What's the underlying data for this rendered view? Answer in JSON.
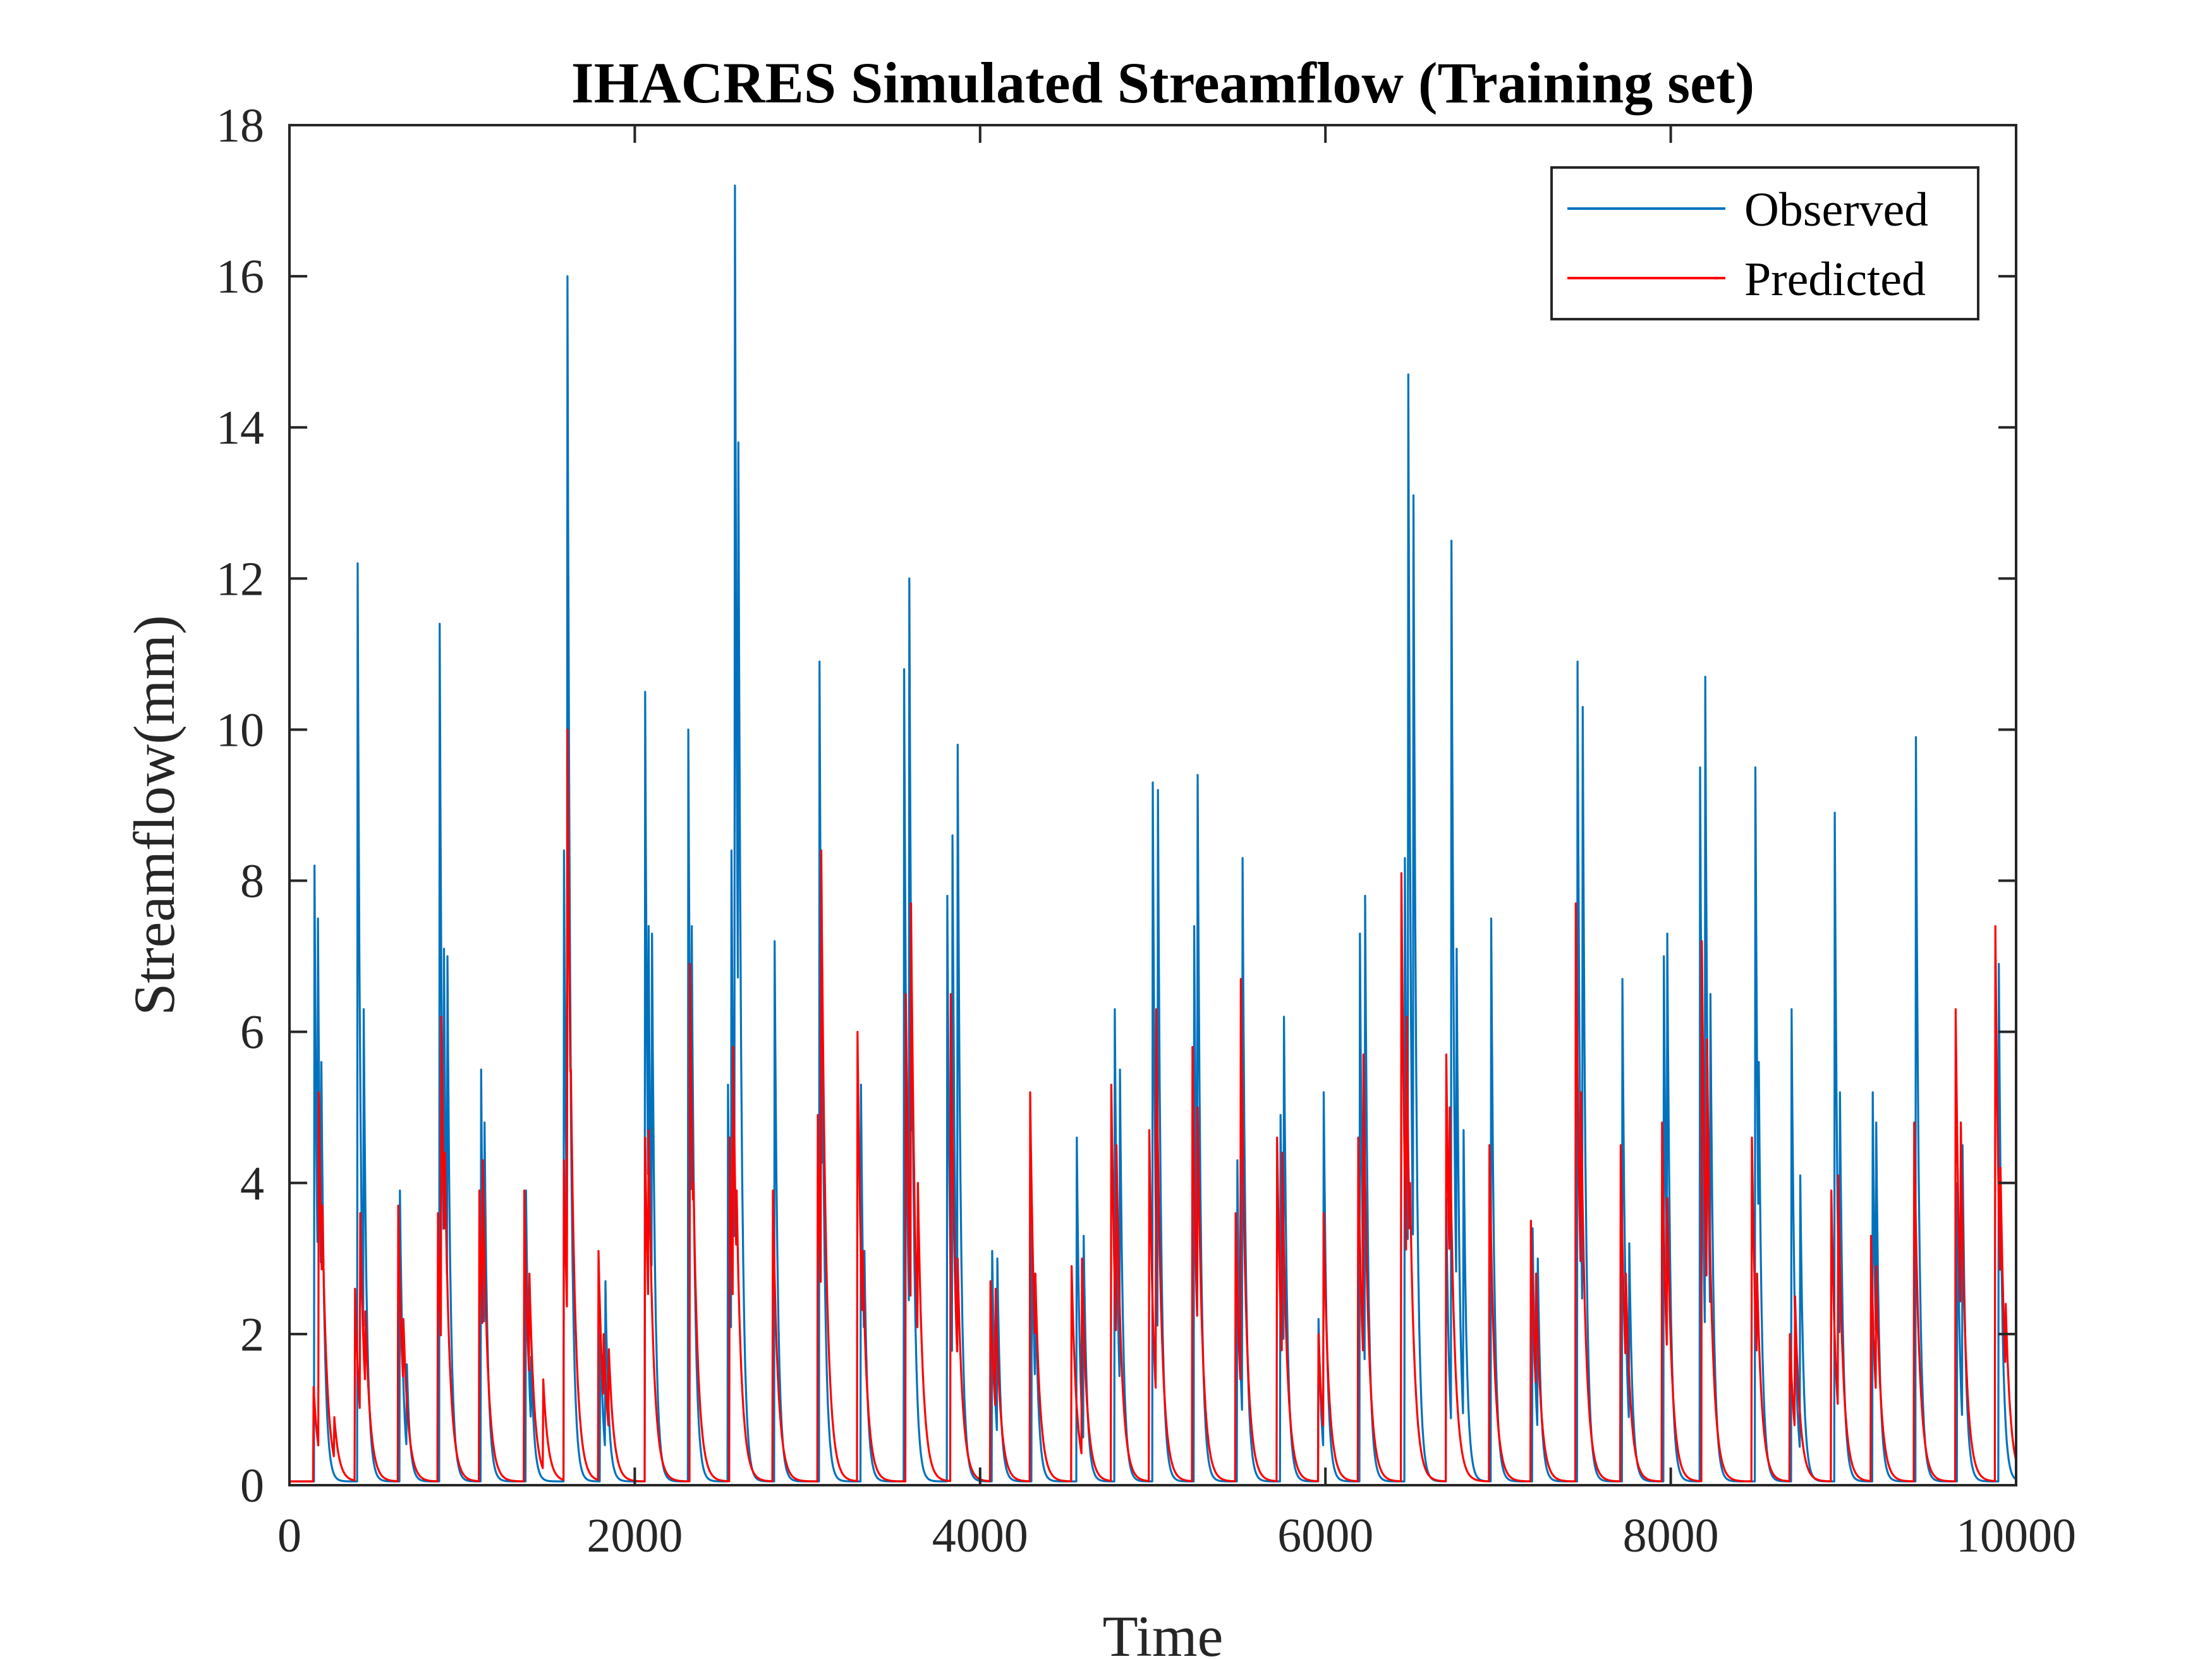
{
  "chart_data": {
    "type": "line",
    "title": "IHACRES Simulated Streamflow (Training set)",
    "xlabel": "Time",
    "ylabel": "Streamflow(mm)",
    "xlim": [
      0,
      10000
    ],
    "ylim": [
      0,
      18
    ],
    "xticks": [
      "0",
      "2000",
      "4000",
      "6000",
      "8000",
      "10000"
    ],
    "yticks": [
      "0",
      "2",
      "4",
      "6",
      "8",
      "10",
      "12",
      "14",
      "16",
      "18"
    ],
    "grid": false,
    "legend_position": "top-right",
    "baseline": 0.05,
    "series": [
      {
        "name": "Observed",
        "color": "#0072BD",
        "peaks": [
          [
            145,
            8.2
          ],
          [
            165,
            7.5
          ],
          [
            185,
            5.6
          ],
          [
            395,
            12.2
          ],
          [
            430,
            6.3
          ],
          [
            640,
            3.9
          ],
          [
            680,
            1.6
          ],
          [
            870,
            11.4
          ],
          [
            895,
            7.1
          ],
          [
            915,
            7.0
          ],
          [
            1110,
            5.5
          ],
          [
            1130,
            4.8
          ],
          [
            1370,
            3.9
          ],
          [
            1400,
            1.7
          ],
          [
            1590,
            8.4
          ],
          [
            1610,
            16.0
          ],
          [
            1630,
            5.0
          ],
          [
            1800,
            2.2
          ],
          [
            1830,
            2.7
          ],
          [
            2060,
            10.5
          ],
          [
            2080,
            7.4
          ],
          [
            2100,
            7.3
          ],
          [
            2310,
            10.0
          ],
          [
            2330,
            7.4
          ],
          [
            2540,
            5.3
          ],
          [
            2560,
            8.4
          ],
          [
            2580,
            17.2
          ],
          [
            2600,
            13.8
          ],
          [
            2810,
            7.2
          ],
          [
            3070,
            10.9
          ],
          [
            3090,
            5.0
          ],
          [
            3310,
            5.3
          ],
          [
            3330,
            3.1
          ],
          [
            3560,
            10.8
          ],
          [
            3590,
            12.0
          ],
          [
            3610,
            5.0
          ],
          [
            3810,
            7.8
          ],
          [
            3840,
            8.6
          ],
          [
            3870,
            9.8
          ],
          [
            4070,
            3.1
          ],
          [
            4100,
            3.0
          ],
          [
            4300,
            3.7
          ],
          [
            4320,
            2.8
          ],
          [
            4560,
            4.6
          ],
          [
            4600,
            3.3
          ],
          [
            4780,
            6.3
          ],
          [
            4810,
            5.5
          ],
          [
            5000,
            9.3
          ],
          [
            5030,
            9.2
          ],
          [
            5240,
            7.4
          ],
          [
            5260,
            9.4
          ],
          [
            5490,
            4.3
          ],
          [
            5520,
            8.3
          ],
          [
            5740,
            4.9
          ],
          [
            5760,
            6.2
          ],
          [
            5960,
            2.2
          ],
          [
            5990,
            5.2
          ],
          [
            6200,
            7.3
          ],
          [
            6230,
            7.8
          ],
          [
            6460,
            8.3
          ],
          [
            6480,
            14.7
          ],
          [
            6510,
            13.1
          ],
          [
            6700,
            3.8
          ],
          [
            6730,
            12.5
          ],
          [
            6760,
            7.1
          ],
          [
            6800,
            4.7
          ],
          [
            6960,
            7.5
          ],
          [
            7200,
            3.4
          ],
          [
            7230,
            3.0
          ],
          [
            7460,
            10.9
          ],
          [
            7490,
            10.3
          ],
          [
            7720,
            6.7
          ],
          [
            7760,
            3.2
          ],
          [
            7960,
            7.0
          ],
          [
            7980,
            7.3
          ],
          [
            8170,
            9.5
          ],
          [
            8200,
            10.7
          ],
          [
            8230,
            6.5
          ],
          [
            8490,
            9.5
          ],
          [
            8510,
            5.6
          ],
          [
            8700,
            6.3
          ],
          [
            8750,
            4.1
          ],
          [
            8950,
            8.9
          ],
          [
            8980,
            5.2
          ],
          [
            9170,
            5.2
          ],
          [
            9190,
            4.8
          ],
          [
            9420,
            9.9
          ],
          [
            9660,
            4.0
          ],
          [
            9690,
            4.5
          ],
          [
            9900,
            6.9
          ]
        ]
      },
      {
        "name": "Predicted",
        "color": "#FF0000",
        "peaks": [
          [
            140,
            1.3
          ],
          [
            170,
            5.2
          ],
          [
            190,
            3.7
          ],
          [
            260,
            0.9
          ],
          [
            380,
            2.6
          ],
          [
            410,
            3.6
          ],
          [
            440,
            2.3
          ],
          [
            630,
            3.7
          ],
          [
            660,
            2.2
          ],
          [
            860,
            3.6
          ],
          [
            880,
            6.2
          ],
          [
            900,
            4.4
          ],
          [
            1100,
            3.9
          ],
          [
            1120,
            4.3
          ],
          [
            1360,
            3.9
          ],
          [
            1390,
            2.8
          ],
          [
            1470,
            1.4
          ],
          [
            1590,
            4.3
          ],
          [
            1610,
            10.0
          ],
          [
            1630,
            5.5
          ],
          [
            1790,
            3.1
          ],
          [
            1820,
            2.0
          ],
          [
            1850,
            1.8
          ],
          [
            2060,
            4.6
          ],
          [
            2080,
            4.7
          ],
          [
            2320,
            6.9
          ],
          [
            2340,
            4.0
          ],
          [
            2550,
            4.6
          ],
          [
            2570,
            5.8
          ],
          [
            2590,
            3.9
          ],
          [
            2800,
            3.9
          ],
          [
            3060,
            4.9
          ],
          [
            3080,
            8.4
          ],
          [
            3290,
            6.0
          ],
          [
            3320,
            3.1
          ],
          [
            3570,
            6.5
          ],
          [
            3600,
            7.7
          ],
          [
            3640,
            4.0
          ],
          [
            3830,
            6.5
          ],
          [
            3870,
            3.0
          ],
          [
            4060,
            2.7
          ],
          [
            4090,
            2.6
          ],
          [
            4290,
            5.2
          ],
          [
            4320,
            2.8
          ],
          [
            4530,
            2.9
          ],
          [
            4590,
            3.0
          ],
          [
            4760,
            5.3
          ],
          [
            4790,
            4.5
          ],
          [
            4980,
            4.7
          ],
          [
            5020,
            6.3
          ],
          [
            5230,
            5.8
          ],
          [
            5260,
            5.0
          ],
          [
            5480,
            3.6
          ],
          [
            5510,
            6.7
          ],
          [
            5720,
            4.6
          ],
          [
            5750,
            4.4
          ],
          [
            5960,
            2.0
          ],
          [
            5990,
            3.6
          ],
          [
            6190,
            4.6
          ],
          [
            6220,
            5.7
          ],
          [
            6440,
            8.1
          ],
          [
            6470,
            6.2
          ],
          [
            6490,
            4.0
          ],
          [
            6700,
            5.7
          ],
          [
            6720,
            5.0
          ],
          [
            6950,
            4.5
          ],
          [
            7190,
            3.5
          ],
          [
            7220,
            2.8
          ],
          [
            7450,
            7.7
          ],
          [
            7480,
            5.2
          ],
          [
            7710,
            4.5
          ],
          [
            7740,
            2.8
          ],
          [
            7950,
            4.8
          ],
          [
            7980,
            3.8
          ],
          [
            8180,
            7.2
          ],
          [
            8210,
            5.9
          ],
          [
            8470,
            4.6
          ],
          [
            8500,
            2.8
          ],
          [
            8690,
            2.0
          ],
          [
            8720,
            2.5
          ],
          [
            8930,
            3.9
          ],
          [
            8970,
            4.1
          ],
          [
            9160,
            3.3
          ],
          [
            9190,
            2.9
          ],
          [
            9410,
            4.8
          ],
          [
            9650,
            6.3
          ],
          [
            9680,
            4.8
          ],
          [
            9880,
            7.4
          ],
          [
            9910,
            4.2
          ],
          [
            9940,
            2.4
          ]
        ]
      }
    ]
  }
}
